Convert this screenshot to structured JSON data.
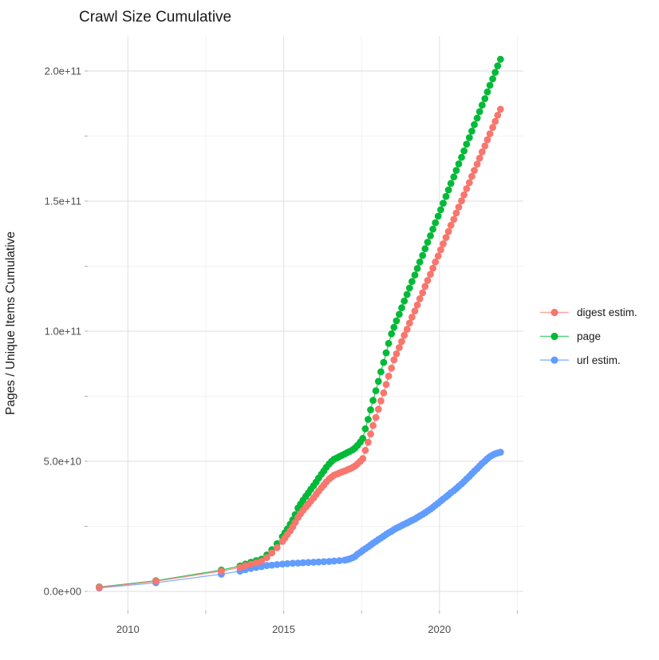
{
  "title": "Crawl Size Cumulative",
  "axes": {
    "y_title": "Pages / Unique Items Cumulative",
    "y_tick_labels": [
      "0.0e+00",
      "5.0e+10",
      "1.0e+11",
      "1.5e+11",
      "2.0e+11"
    ],
    "x_tick_labels": [
      "2010",
      "2015",
      "2020"
    ]
  },
  "legend": {
    "items": [
      {
        "label": "digest estim.",
        "color": "#F8766D"
      },
      {
        "label": "page",
        "color": "#00BA38"
      },
      {
        "label": "url estim.",
        "color": "#619CFF"
      }
    ]
  },
  "colors": {
    "digest": "#F8766D",
    "page": "#00BA38",
    "url": "#619CFF",
    "grid_major": "#e4e4e4",
    "grid_minor": "#f1f1f1",
    "tick_mark": "#b3b3b3",
    "tick_text": "#4d4d4d",
    "title_text": "#1a1a1a"
  },
  "chart_data": {
    "type": "line",
    "title": "Crawl Size Cumulative",
    "xlabel": "",
    "ylabel": "Pages / Unique Items Cumulative",
    "x_unit": "year",
    "y_unit": "count (values below in billions, 1e9)",
    "xlim": [
      2008.7,
      2022.7
    ],
    "ylim_e9": [
      0,
      220
    ],
    "x_major_breaks": [
      2010,
      2015,
      2020
    ],
    "x_minor_breaks": [
      2012.5,
      2017.5,
      2022.5
    ],
    "y_major_breaks_e9": [
      0,
      50,
      100,
      150,
      200
    ],
    "y_minor_breaks_e9": [
      25,
      75,
      125,
      175
    ],
    "grid": true,
    "legend_position": "right",
    "series": [
      {
        "name": "url estim.",
        "color": "#619CFF",
        "points": [
          [
            2009.08,
            1.3
          ],
          [
            2010.9,
            3.3
          ],
          [
            2013.0,
            6.6
          ],
          [
            2013.6,
            7.8
          ],
          [
            2013.77,
            8.3
          ],
          [
            2013.95,
            8.8
          ],
          [
            2014.12,
            9.2
          ],
          [
            2014.29,
            9.5
          ],
          [
            2014.46,
            9.9
          ],
          [
            2014.62,
            10.1
          ],
          [
            2014.79,
            10.3
          ],
          [
            2014.96,
            10.5
          ],
          [
            2015.12,
            10.65
          ],
          [
            2015.29,
            10.8
          ],
          [
            2015.46,
            10.9
          ],
          [
            2015.62,
            11.0
          ],
          [
            2015.79,
            11.1
          ],
          [
            2015.96,
            11.2
          ],
          [
            2016.12,
            11.3
          ],
          [
            2016.29,
            11.4
          ],
          [
            2016.46,
            11.5
          ],
          [
            2016.62,
            11.65
          ],
          [
            2016.79,
            11.8
          ],
          [
            2016.96,
            12.0
          ],
          [
            2017.04,
            12.2
          ],
          [
            2017.12,
            12.5
          ],
          [
            2017.21,
            12.9
          ],
          [
            2017.29,
            13.4
          ],
          [
            2017.37,
            14.3
          ],
          [
            2017.46,
            15.0
          ],
          [
            2017.54,
            15.7
          ],
          [
            2017.62,
            16.4
          ],
          [
            2017.71,
            17.1
          ],
          [
            2017.79,
            17.8
          ],
          [
            2017.87,
            18.5
          ],
          [
            2017.96,
            19.2
          ],
          [
            2018.04,
            19.9
          ],
          [
            2018.12,
            20.5
          ],
          [
            2018.21,
            21.2
          ],
          [
            2018.29,
            21.9
          ],
          [
            2018.37,
            22.5
          ],
          [
            2018.46,
            23.1
          ],
          [
            2018.54,
            23.7
          ],
          [
            2018.62,
            24.3
          ],
          [
            2018.71,
            24.8
          ],
          [
            2018.79,
            25.3
          ],
          [
            2018.87,
            25.8
          ],
          [
            2018.96,
            26.3
          ],
          [
            2019.04,
            26.8
          ],
          [
            2019.12,
            27.3
          ],
          [
            2019.21,
            27.8
          ],
          [
            2019.29,
            28.4
          ],
          [
            2019.37,
            29.0
          ],
          [
            2019.46,
            29.6
          ],
          [
            2019.54,
            30.2
          ],
          [
            2019.62,
            30.9
          ],
          [
            2019.71,
            31.6
          ],
          [
            2019.79,
            32.3
          ],
          [
            2019.87,
            33.1
          ],
          [
            2019.96,
            33.9
          ],
          [
            2020.04,
            34.7
          ],
          [
            2020.12,
            35.5
          ],
          [
            2020.21,
            36.3
          ],
          [
            2020.29,
            37.1
          ],
          [
            2020.37,
            37.9
          ],
          [
            2020.46,
            38.7
          ],
          [
            2020.54,
            39.5
          ],
          [
            2020.62,
            40.4
          ],
          [
            2020.71,
            41.3
          ],
          [
            2020.79,
            42.2
          ],
          [
            2020.87,
            43.2
          ],
          [
            2020.96,
            44.2
          ],
          [
            2021.04,
            45.2
          ],
          [
            2021.12,
            46.2
          ],
          [
            2021.21,
            47.2
          ],
          [
            2021.29,
            48.2
          ],
          [
            2021.37,
            49.2
          ],
          [
            2021.46,
            50.1
          ],
          [
            2021.54,
            51.0
          ],
          [
            2021.62,
            51.8
          ],
          [
            2021.71,
            52.4
          ],
          [
            2021.79,
            52.9
          ],
          [
            2021.87,
            53.2
          ],
          [
            2021.96,
            53.5
          ]
        ]
      },
      {
        "name": "page",
        "color": "#00BA38",
        "points": [
          [
            2009.08,
            1.7
          ],
          [
            2010.9,
            4.1
          ],
          [
            2013.0,
            8.2
          ],
          [
            2013.6,
            9.8
          ],
          [
            2013.77,
            10.5
          ],
          [
            2013.95,
            11.2
          ],
          [
            2014.12,
            11.8
          ],
          [
            2014.29,
            12.4
          ],
          [
            2014.46,
            14.0
          ],
          [
            2014.62,
            16.0
          ],
          [
            2014.79,
            18.3
          ],
          [
            2014.96,
            21.0
          ],
          [
            2015.04,
            22.5
          ],
          [
            2015.12,
            24.0
          ],
          [
            2015.21,
            25.8
          ],
          [
            2015.29,
            27.5
          ],
          [
            2015.37,
            29.5
          ],
          [
            2015.46,
            32.0
          ],
          [
            2015.54,
            33.5
          ],
          [
            2015.62,
            35.0
          ],
          [
            2015.71,
            36.5
          ],
          [
            2015.79,
            37.8
          ],
          [
            2015.87,
            39.2
          ],
          [
            2015.96,
            40.6
          ],
          [
            2016.04,
            42.0
          ],
          [
            2016.12,
            43.5
          ],
          [
            2016.21,
            45.0
          ],
          [
            2016.29,
            46.3
          ],
          [
            2016.37,
            47.7
          ],
          [
            2016.46,
            49.0
          ],
          [
            2016.54,
            50.0
          ],
          [
            2016.62,
            50.8
          ],
          [
            2016.71,
            51.3
          ],
          [
            2016.79,
            51.8
          ],
          [
            2016.87,
            52.3
          ],
          [
            2016.96,
            52.8
          ],
          [
            2017.04,
            53.3
          ],
          [
            2017.12,
            53.8
          ],
          [
            2017.21,
            54.4
          ],
          [
            2017.29,
            55.1
          ],
          [
            2017.37,
            56.1
          ],
          [
            2017.46,
            57.4
          ],
          [
            2017.54,
            58.8
          ],
          [
            2017.62,
            62.5
          ],
          [
            2017.71,
            66.1
          ],
          [
            2017.79,
            69.8
          ],
          [
            2017.87,
            73.4
          ],
          [
            2017.96,
            77.1
          ],
          [
            2018.04,
            80.7
          ],
          [
            2018.12,
            84.4
          ],
          [
            2018.21,
            88.0
          ],
          [
            2018.29,
            91.7
          ],
          [
            2018.37,
            95.3
          ],
          [
            2018.46,
            99.0
          ],
          [
            2018.54,
            101.5
          ],
          [
            2018.62,
            104.0
          ],
          [
            2018.71,
            106.5
          ],
          [
            2018.79,
            109.0
          ],
          [
            2018.87,
            111.6
          ],
          [
            2018.96,
            114.1
          ],
          [
            2019.04,
            116.6
          ],
          [
            2019.12,
            119.1
          ],
          [
            2019.21,
            121.6
          ],
          [
            2019.29,
            124.1
          ],
          [
            2019.37,
            126.6
          ],
          [
            2019.46,
            129.1
          ],
          [
            2019.54,
            131.7
          ],
          [
            2019.62,
            134.2
          ],
          [
            2019.71,
            136.7
          ],
          [
            2019.79,
            139.2
          ],
          [
            2019.87,
            141.7
          ],
          [
            2019.96,
            144.2
          ],
          [
            2020.04,
            146.7
          ],
          [
            2020.12,
            149.2
          ],
          [
            2020.21,
            151.8
          ],
          [
            2020.29,
            154.3
          ],
          [
            2020.37,
            156.8
          ],
          [
            2020.46,
            159.3
          ],
          [
            2020.54,
            161.8
          ],
          [
            2020.62,
            164.3
          ],
          [
            2020.71,
            166.8
          ],
          [
            2020.79,
            169.3
          ],
          [
            2020.87,
            171.9
          ],
          [
            2020.96,
            174.4
          ],
          [
            2021.04,
            176.9
          ],
          [
            2021.12,
            179.4
          ],
          [
            2021.21,
            181.9
          ],
          [
            2021.29,
            184.4
          ],
          [
            2021.37,
            186.9
          ],
          [
            2021.46,
            189.4
          ],
          [
            2021.54,
            192.0
          ],
          [
            2021.62,
            194.5
          ],
          [
            2021.71,
            197.0
          ],
          [
            2021.79,
            199.5
          ],
          [
            2021.87,
            202.0
          ],
          [
            2021.96,
            204.5
          ]
        ]
      },
      {
        "name": "digest estim.",
        "color": "#F8766D",
        "points": [
          [
            2009.08,
            1.5
          ],
          [
            2010.9,
            3.9
          ],
          [
            2013.0,
            7.8
          ],
          [
            2013.6,
            9.2
          ],
          [
            2013.77,
            9.9
          ],
          [
            2013.95,
            10.5
          ],
          [
            2014.12,
            11.0
          ],
          [
            2014.29,
            11.6
          ],
          [
            2014.46,
            13.0
          ],
          [
            2014.62,
            14.8
          ],
          [
            2014.79,
            16.8
          ],
          [
            2014.96,
            19.2
          ],
          [
            2015.04,
            20.5
          ],
          [
            2015.12,
            21.9
          ],
          [
            2015.21,
            23.3
          ],
          [
            2015.29,
            24.8
          ],
          [
            2015.37,
            26.5
          ],
          [
            2015.46,
            28.4
          ],
          [
            2015.54,
            29.8
          ],
          [
            2015.62,
            31.1
          ],
          [
            2015.71,
            32.4
          ],
          [
            2015.79,
            33.5
          ],
          [
            2015.87,
            34.7
          ],
          [
            2015.96,
            35.9
          ],
          [
            2016.04,
            37.2
          ],
          [
            2016.12,
            38.5
          ],
          [
            2016.21,
            39.8
          ],
          [
            2016.29,
            40.9
          ],
          [
            2016.37,
            42.1
          ],
          [
            2016.46,
            43.2
          ],
          [
            2016.54,
            44.0
          ],
          [
            2016.62,
            44.7
          ],
          [
            2016.71,
            45.1
          ],
          [
            2016.79,
            45.5
          ],
          [
            2016.87,
            45.9
          ],
          [
            2016.96,
            46.3
          ],
          [
            2017.04,
            46.7
          ],
          [
            2017.12,
            47.1
          ],
          [
            2017.21,
            47.6
          ],
          [
            2017.29,
            48.2
          ],
          [
            2017.37,
            49.0
          ],
          [
            2017.46,
            50.0
          ],
          [
            2017.54,
            51.0
          ],
          [
            2017.62,
            54.2
          ],
          [
            2017.71,
            57.3
          ],
          [
            2017.79,
            60.5
          ],
          [
            2017.87,
            63.7
          ],
          [
            2017.96,
            66.8
          ],
          [
            2018.04,
            70.0
          ],
          [
            2018.12,
            73.2
          ],
          [
            2018.21,
            76.3
          ],
          [
            2018.29,
            79.5
          ],
          [
            2018.37,
            82.7
          ],
          [
            2018.46,
            85.8
          ],
          [
            2018.54,
            89.0
          ],
          [
            2018.62,
            91.3
          ],
          [
            2018.71,
            93.7
          ],
          [
            2018.79,
            96.0
          ],
          [
            2018.87,
            98.4
          ],
          [
            2018.96,
            100.7
          ],
          [
            2019.04,
            103.1
          ],
          [
            2019.12,
            105.4
          ],
          [
            2019.21,
            107.8
          ],
          [
            2019.29,
            110.1
          ],
          [
            2019.37,
            112.5
          ],
          [
            2019.46,
            114.8
          ],
          [
            2019.54,
            117.2
          ],
          [
            2019.62,
            119.5
          ],
          [
            2019.71,
            121.9
          ],
          [
            2019.79,
            124.2
          ],
          [
            2019.87,
            126.6
          ],
          [
            2019.96,
            128.9
          ],
          [
            2020.04,
            131.3
          ],
          [
            2020.12,
            133.6
          ],
          [
            2020.21,
            136.0
          ],
          [
            2020.29,
            138.3
          ],
          [
            2020.37,
            140.7
          ],
          [
            2020.46,
            143.0
          ],
          [
            2020.54,
            145.4
          ],
          [
            2020.62,
            147.7
          ],
          [
            2020.71,
            150.1
          ],
          [
            2020.79,
            152.4
          ],
          [
            2020.87,
            154.8
          ],
          [
            2020.96,
            157.1
          ],
          [
            2021.04,
            159.5
          ],
          [
            2021.12,
            161.8
          ],
          [
            2021.21,
            164.2
          ],
          [
            2021.29,
            166.5
          ],
          [
            2021.37,
            168.9
          ],
          [
            2021.46,
            171.2
          ],
          [
            2021.54,
            173.6
          ],
          [
            2021.62,
            175.9
          ],
          [
            2021.71,
            178.3
          ],
          [
            2021.79,
            180.6
          ],
          [
            2021.87,
            183.0
          ],
          [
            2021.96,
            185.3
          ]
        ]
      }
    ]
  }
}
